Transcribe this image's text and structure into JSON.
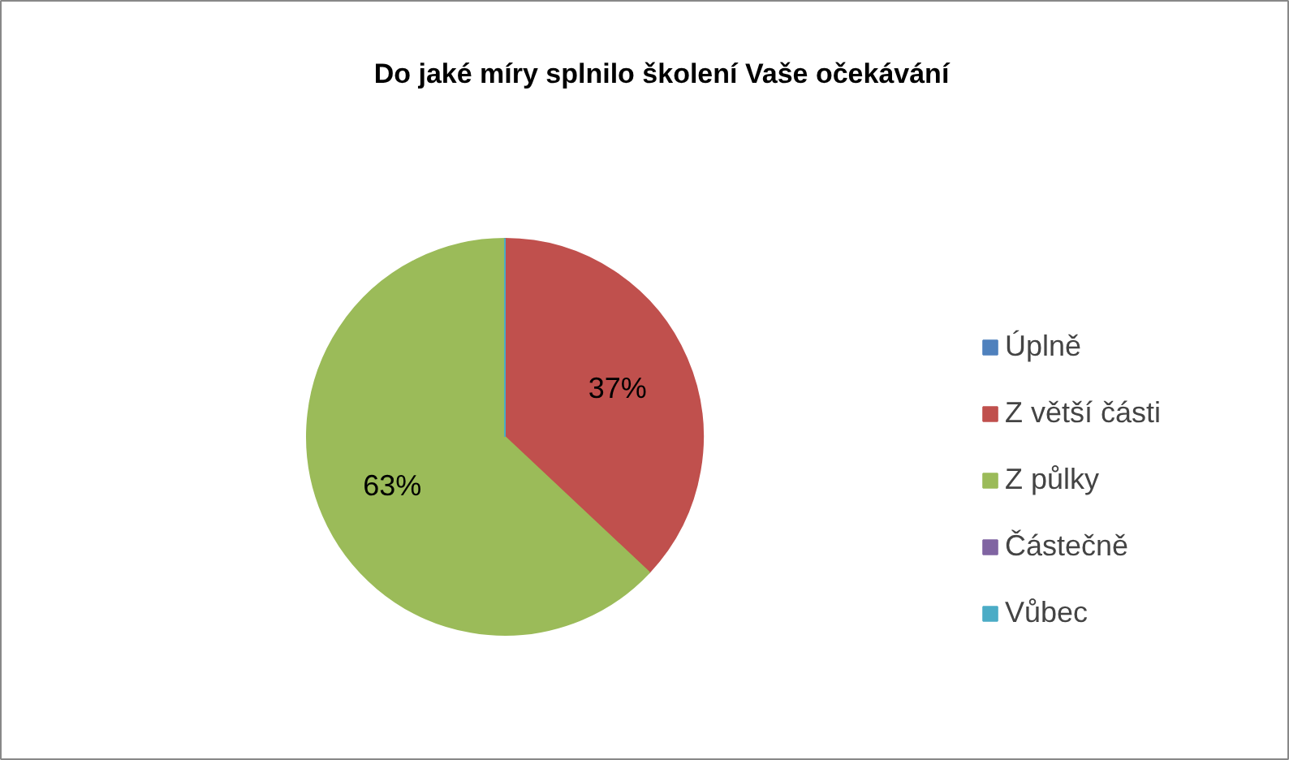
{
  "chart_data": {
    "type": "pie",
    "title": "Do jaké míry splnilo školení Vaše očekávání",
    "categories": [
      "Úplně",
      "Z větší části",
      "Z půlky",
      "Částečně",
      "Vůbec"
    ],
    "values": [
      0,
      37,
      63,
      0,
      0
    ],
    "colors": [
      "#4f81bd",
      "#c0504d",
      "#9bbb59",
      "#8064a2",
      "#4bacc6"
    ],
    "value_labels": [
      null,
      "37%",
      "63%",
      null,
      null
    ],
    "legend": "right"
  }
}
